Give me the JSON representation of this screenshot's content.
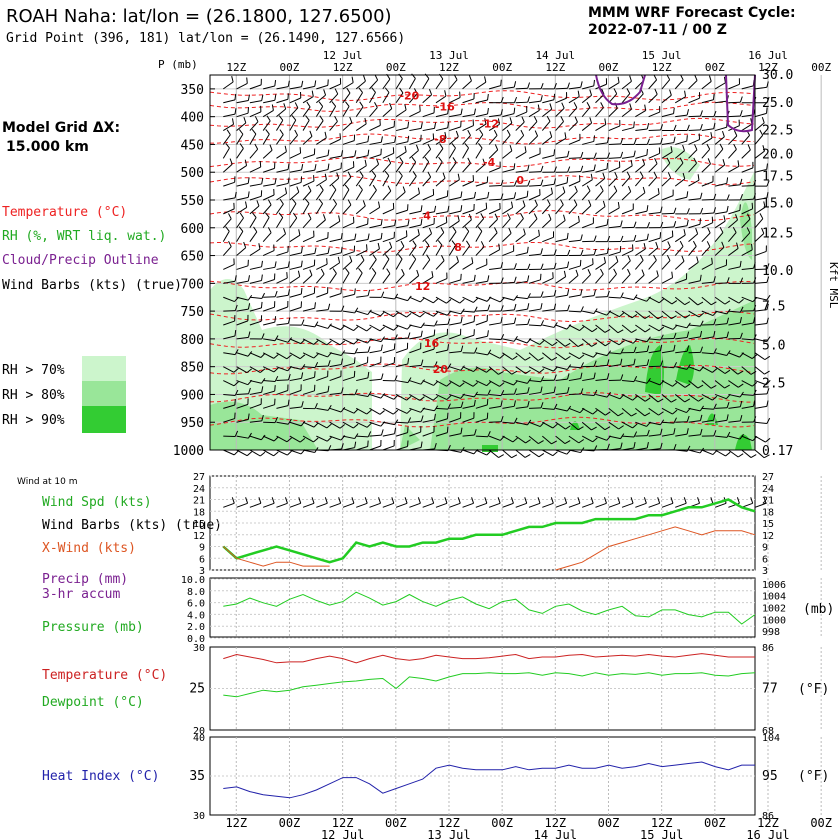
{
  "header": {
    "title": "ROAH Naha:  lat/lon = (26.1800, 127.6500)",
    "subtitle": "Grid Point (396, 181) lat/lon = (26.1490, 127.6566)",
    "cycle_line1": "MMM WRF Forecast Cycle:",
    "cycle_line2": "2022-07-11 / 00  Z"
  },
  "legend": {
    "grid_line1": "Model Grid ΔX:",
    "grid_line2": "15.000 km",
    "temperature": "Temperature (°C)",
    "rh": "RH (%, WRT liq. wat.)",
    "cloud": "Cloud/Precip Outline",
    "wind": "Wind Barbs (kts) (true)",
    "rh70": "RH > 70%",
    "rh80": "RH > 80%",
    "rh90": "RH > 90%",
    "colors": {
      "rh70": "#ccf5cc",
      "rh80": "#99e699",
      "rh90": "#33cc33",
      "temp": "#ee2222",
      "cloud": "#7a2090"
    }
  },
  "chart_data": [
    {
      "type": "heatmap",
      "name": "sounding cross-section",
      "p_axis_label": "P (mb)",
      "pressure_ticks": [
        "350",
        "400",
        "450",
        "500",
        "550",
        "600",
        "650",
        "700",
        "750",
        "800",
        "850",
        "900",
        "950",
        "1000"
      ],
      "height_ticks": [
        "30.0",
        "25.0",
        "22.5",
        "20.0",
        "17.5",
        "15.0",
        "12.5",
        "10.0",
        "7.5",
        "5.0",
        "2.5",
        "0.17"
      ],
      "height_axis_label": "Kft MSL",
      "time_ticks_top": [
        "12Z",
        "00Z",
        "12Z",
        "00Z",
        "12Z",
        "00Z",
        "12Z",
        "00Z",
        "12Z",
        "00Z",
        "12Z",
        "00Z"
      ],
      "date_ticks_top": [
        "12 Jul",
        "13 Jul",
        "14 Jul",
        "15 Jul",
        "16 Jul"
      ],
      "isotherm_labels": [
        {
          "value": "-20",
          "hour": 42,
          "p": 362
        },
        {
          "value": "-16",
          "hour": 50,
          "p": 382
        },
        {
          "value": "-12",
          "hour": 60,
          "p": 412
        },
        {
          "value": "-8",
          "hour": 49,
          "p": 440
        },
        {
          "value": "-4",
          "hour": 60,
          "p": 482
        },
        {
          "value": "0",
          "hour": 67,
          "p": 514
        },
        {
          "value": "4",
          "hour": 46,
          "p": 578
        },
        {
          "value": "8",
          "hour": 53,
          "p": 635
        },
        {
          "value": "12",
          "hour": 45,
          "p": 705
        },
        {
          "value": "16",
          "hour": 47,
          "p": 807
        },
        {
          "value": "20",
          "hour": 49,
          "p": 854
        }
      ]
    },
    {
      "type": "line",
      "name": "wind",
      "panel_label": "Wind at 10 m",
      "ylim": [
        3,
        27
      ],
      "y_ticks": [
        "27",
        "24",
        "21",
        "18",
        "15",
        "12",
        "9",
        "6",
        "3"
      ],
      "series": [
        {
          "name": "Wind Spd (kts)",
          "color": "#22cc22",
          "hours": [
            0,
            3,
            6,
            9,
            12,
            15,
            18,
            21,
            24,
            27,
            30,
            33,
            36,
            39,
            42,
            45,
            48,
            51,
            54,
            57,
            60,
            63,
            66,
            69,
            72,
            75,
            78,
            81,
            84,
            87,
            90,
            93,
            96,
            99,
            102,
            105,
            108,
            111,
            114,
            117,
            120
          ],
          "values": [
            9,
            6,
            7,
            8,
            9,
            8,
            7,
            6,
            5,
            6,
            10,
            9,
            10,
            9,
            9,
            10,
            10,
            11,
            11,
            12,
            12,
            12,
            13,
            14,
            14,
            15,
            15,
            15,
            16,
            16,
            16,
            16,
            17,
            17,
            18,
            19,
            19,
            20,
            21,
            19,
            18
          ]
        },
        {
          "name": "X-Wind (kts)",
          "color": "#dd5522",
          "hours": [
            0,
            3,
            6,
            9,
            12,
            15,
            18,
            21,
            24,
            75,
            78,
            81,
            84,
            87,
            90,
            93,
            96,
            99,
            102,
            105,
            108,
            111,
            114,
            117,
            120
          ],
          "values": [
            9,
            6,
            5,
            4,
            5,
            5,
            4,
            4,
            4,
            3,
            4,
            5,
            7,
            9,
            10,
            11,
            12,
            13,
            14,
            13,
            12,
            13,
            13,
            13,
            12
          ]
        }
      ]
    },
    {
      "type": "line",
      "name": "precip-pressure",
      "y_ticks_left": [
        "10.0",
        "8.0",
        "6.0",
        "4.0",
        "2.0",
        "0.0"
      ],
      "y_ticks_right": [
        "1006",
        "1004",
        "1002",
        "1000",
        "998"
      ],
      "right_unit": "(mb)",
      "series": [
        {
          "name": "Pressure (mb)",
          "color": "#22cc22",
          "hours": [
            0,
            3,
            6,
            9,
            12,
            15,
            18,
            21,
            24,
            27,
            30,
            33,
            36,
            39,
            42,
            45,
            48,
            51,
            54,
            57,
            60,
            63,
            66,
            69,
            72,
            75,
            78,
            81,
            84,
            87,
            90,
            93,
            96,
            99,
            102,
            105,
            108,
            111,
            114,
            117,
            120
          ],
          "values": [
            1002.2,
            1002.6,
            1003.6,
            1002.8,
            1002.2,
            1003.4,
            1004.2,
            1003.2,
            1002.4,
            1003.0,
            1004.6,
            1003.6,
            1002.4,
            1003.0,
            1004.2,
            1003.0,
            1002.2,
            1003.2,
            1003.8,
            1002.6,
            1001.8,
            1003.0,
            1003.4,
            1001.6,
            1001.0,
            1002.2,
            1002.6,
            1001.4,
            1000.8,
            1001.6,
            1002.2,
            1000.6,
            1000.4,
            1001.6,
            1001.6,
            1000.8,
            1000.4,
            1001.2,
            1001.2,
            999.2,
            1000.8
          ]
        },
        {
          "name": "Precip (mm) 3-hr accum",
          "color": "#7a2090",
          "hours": [],
          "values": []
        }
      ]
    },
    {
      "type": "line",
      "name": "temperature-dewpoint",
      "ylim": [
        20,
        30
      ],
      "y_ticks_left": [
        "30",
        "25",
        "20"
      ],
      "y_ticks_right": [
        "86",
        "77",
        "68"
      ],
      "right_unit": "(°F)",
      "series": [
        {
          "name": "Temperature (°C)",
          "color": "#cc2222",
          "hours": [
            0,
            3,
            6,
            9,
            12,
            15,
            18,
            21,
            24,
            27,
            30,
            33,
            36,
            39,
            42,
            45,
            48,
            51,
            54,
            57,
            60,
            63,
            66,
            69,
            72,
            75,
            78,
            81,
            84,
            87,
            90,
            93,
            96,
            99,
            102,
            105,
            108,
            111,
            114,
            117,
            120
          ],
          "values": [
            28.6,
            29.1,
            28.8,
            28.5,
            28.1,
            28.2,
            28.2,
            28.6,
            28.9,
            28.6,
            28.1,
            28.6,
            29.0,
            28.6,
            28.4,
            28.6,
            29.0,
            28.8,
            28.6,
            28.6,
            28.7,
            28.9,
            29.1,
            28.6,
            28.8,
            28.8,
            29.0,
            29.1,
            28.8,
            28.9,
            29.0,
            28.9,
            29.1,
            28.9,
            28.8,
            29.0,
            29.2,
            29.0,
            28.8,
            28.8,
            28.8
          ]
        },
        {
          "name": "Dewpoint (°C)",
          "color": "#22cc22",
          "hours": [
            0,
            3,
            6,
            9,
            12,
            15,
            18,
            21,
            24,
            27,
            30,
            33,
            36,
            39,
            42,
            45,
            48,
            51,
            54,
            57,
            60,
            63,
            66,
            69,
            72,
            75,
            78,
            81,
            84,
            87,
            90,
            93,
            96,
            99,
            102,
            105,
            108,
            111,
            114,
            117,
            120
          ],
          "values": [
            24.2,
            24.0,
            24.4,
            24.8,
            24.6,
            24.8,
            25.2,
            25.4,
            25.6,
            25.8,
            25.9,
            26.1,
            26.2,
            25.0,
            26.4,
            26.2,
            25.9,
            26.4,
            26.8,
            26.8,
            26.9,
            26.8,
            26.8,
            26.9,
            26.6,
            26.9,
            26.8,
            26.5,
            26.9,
            26.6,
            26.8,
            26.7,
            26.9,
            26.6,
            26.8,
            26.8,
            26.9,
            26.6,
            26.5,
            26.8,
            26.9
          ]
        }
      ]
    },
    {
      "type": "line",
      "name": "heat-index",
      "ylim": [
        30,
        40
      ],
      "y_ticks_left": [
        "40",
        "35",
        "30"
      ],
      "y_ticks_right": [
        "104",
        "95",
        "86"
      ],
      "right_unit": "(°F)",
      "series": [
        {
          "name": "Heat Index (°C)",
          "color": "#2222aa",
          "hours": [
            0,
            3,
            6,
            9,
            12,
            15,
            18,
            21,
            24,
            27,
            30,
            33,
            36,
            39,
            42,
            45,
            48,
            51,
            54,
            57,
            60,
            63,
            66,
            69,
            72,
            75,
            78,
            81,
            84,
            87,
            90,
            93,
            96,
            99,
            102,
            105,
            108,
            111,
            114,
            117,
            120
          ],
          "values": [
            33.4,
            33.6,
            33.0,
            32.6,
            32.4,
            32.2,
            32.6,
            33.2,
            34.0,
            34.8,
            34.8,
            34.0,
            32.8,
            33.4,
            34.0,
            34.6,
            36.0,
            36.4,
            36.0,
            35.8,
            35.8,
            35.8,
            36.2,
            35.8,
            36.0,
            36.0,
            36.4,
            36.0,
            36.0,
            36.4,
            36.0,
            36.2,
            36.6,
            36.2,
            36.4,
            36.6,
            36.8,
            36.2,
            35.8,
            36.4,
            36.4
          ]
        }
      ]
    }
  ],
  "bottom_axis": {
    "time_ticks": [
      "12Z",
      "00Z",
      "12Z",
      "00Z",
      "12Z",
      "00Z",
      "12Z",
      "00Z",
      "12Z",
      "00Z",
      "12Z",
      "00Z"
    ],
    "date_ticks": [
      "12 Jul",
      "13 Jul",
      "14 Jul",
      "15 Jul",
      "16 Jul"
    ]
  }
}
